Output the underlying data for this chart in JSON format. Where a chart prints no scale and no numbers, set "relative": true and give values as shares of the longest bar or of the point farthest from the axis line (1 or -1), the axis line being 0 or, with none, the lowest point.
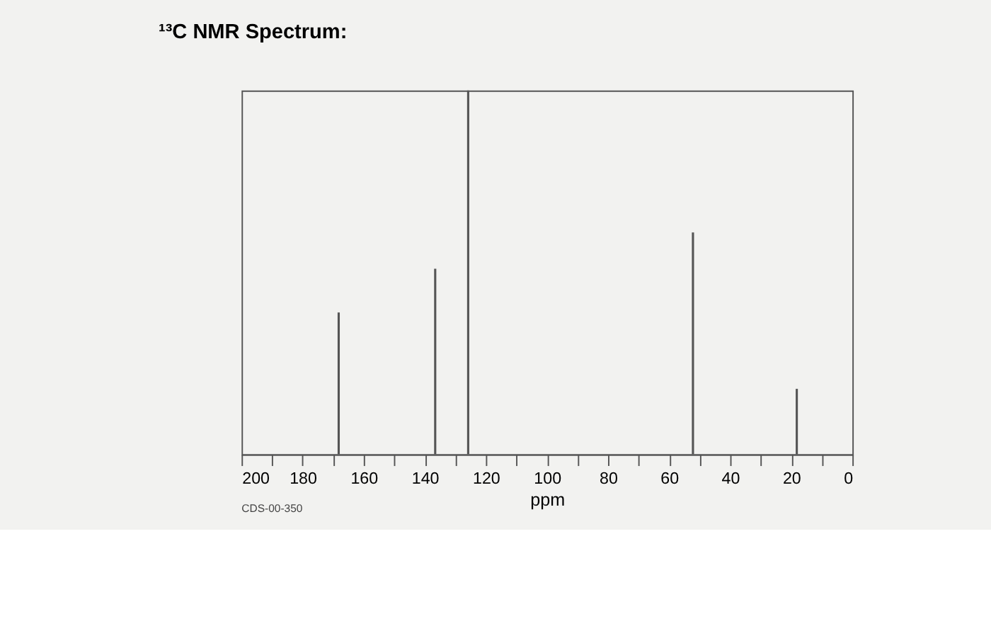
{
  "chart_data": {
    "type": "bar",
    "title": "¹³C NMR Spectrum:",
    "xlabel": "ppm",
    "annotations": [
      "CDS-00-350"
    ],
    "x": [
      168.2,
      136.6,
      125.8,
      52.2,
      18.2
    ],
    "values": [
      0.39,
      0.51,
      1,
      0.61,
      0.18
    ],
    "relative": true,
    "color": "#555555",
    "xlim": [
      200,
      0
    ],
    "xticks": [
      200,
      {
        "value": 190,
        "label": null
      },
      180,
      {
        "value": 170,
        "label": null
      },
      160,
      {
        "value": 150,
        "label": null
      },
      140,
      {
        "value": 130,
        "label": null
      },
      120,
      {
        "value": 110,
        "label": null
      },
      100,
      {
        "value": 90,
        "label": null
      },
      80,
      {
        "value": 70,
        "label": null
      },
      60,
      {
        "value": 50,
        "label": null
      },
      40,
      {
        "value": 30,
        "label": null
      },
      20,
      {
        "value": 10,
        "label": null
      },
      0
    ],
    "grid": false
  }
}
